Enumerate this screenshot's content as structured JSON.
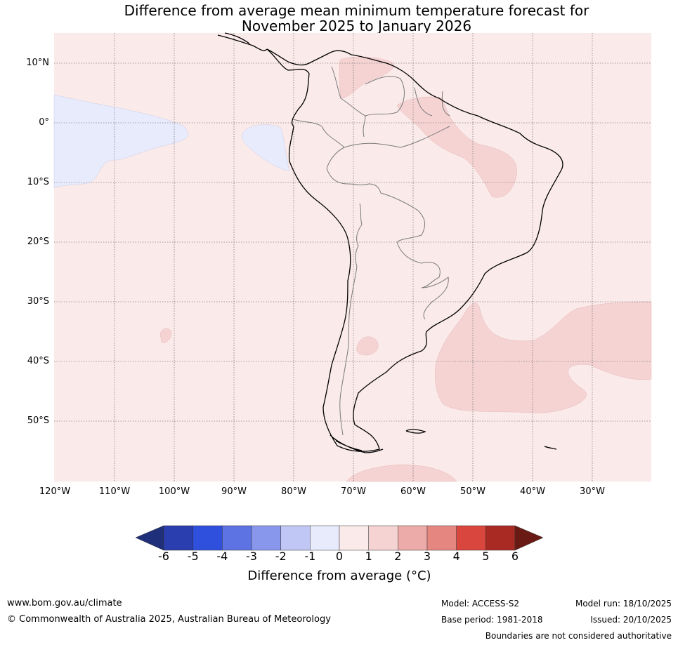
{
  "title": {
    "line1": "Difference from average mean minimum temperature forecast for",
    "line2": "November 2025 to January 2026"
  },
  "latitude_labels": [
    "10°N",
    "0°",
    "10°S",
    "20°S",
    "30°S",
    "40°S",
    "50°S"
  ],
  "longitude_labels": [
    "120°W",
    "110°W",
    "100°W",
    "90°W",
    "80°W",
    "70°W",
    "60°W",
    "50°W",
    "40°W",
    "30°W"
  ],
  "colorbar": {
    "ticks": [
      "-6",
      "-5",
      "-4",
      "-3",
      "-2",
      "-1",
      "0",
      "1",
      "2",
      "3",
      "4",
      "5",
      "6"
    ],
    "colors": {
      "below_min": "#1f2f7a",
      "n6_n5": "#2a3eb0",
      "n5_n4": "#2f4fdd",
      "n4_n3": "#5e73e3",
      "n3_n2": "#8897ec",
      "n2_n1": "#c0c7f4",
      "n1_0": "#e8ebfb",
      "p0_1": "#fbeaea",
      "p1_2": "#f5d3d3",
      "p2_3": "#ecaaa8",
      "p3_4": "#e58780",
      "p4_5": "#d9463e",
      "p5_6": "#a82a23",
      "above_max": "#6a1a14"
    },
    "label": "Difference from average (°C)"
  },
  "map_colors": {
    "background": "#fbeaea",
    "warm_patch": "#f5d3d3",
    "cool_patch": "#e8ebfb"
  },
  "footer": {
    "url": "www.bom.gov.au/climate",
    "copyright": "© Commonwealth of Australia 2025, Australian Bureau of Meteorology",
    "model": "Model: ACCESS-S2",
    "base_period": "Base period: 1981-2018",
    "model_run": "Model run: 18/10/2025",
    "issued": "Issued: 20/10/2025",
    "disclaimer": "Boundaries are not considered authoritative"
  }
}
